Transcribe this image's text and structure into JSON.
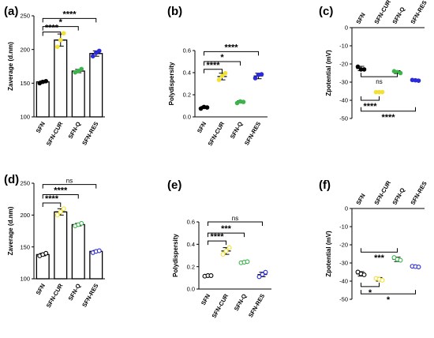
{
  "chart_data": [
    {
      "panel": "(a)",
      "type": "bar",
      "ylabel": "Zaverage (d.nm)",
      "categories": [
        "SFN",
        "SFN-CUR",
        "SFN-Q",
        "SFN-RES"
      ],
      "values": [
        152,
        214,
        168,
        194
      ],
      "errors": [
        1.5,
        9,
        2.5,
        4
      ],
      "points": [
        [
          150,
          152,
          153
        ],
        [
          204,
          214,
          224
        ],
        [
          166,
          168,
          171
        ],
        [
          190,
          195,
          198
        ]
      ],
      "ylim": [
        100,
        250
      ],
      "yticks": [
        "100",
        "150",
        "200",
        "250"
      ],
      "colors": [
        "#000000",
        "#f2e133",
        "#3cb44b",
        "#2b2bd9"
      ],
      "marker_fill": "filled",
      "brackets": [
        {
          "from": 0,
          "to": 1,
          "y": 226,
          "label": "****"
        },
        {
          "from": 0,
          "to": 2,
          "y": 234,
          "label": "*"
        },
        {
          "from": 0,
          "to": 3,
          "y": 246,
          "label": "****"
        }
      ]
    },
    {
      "panel": "(b)",
      "type": "scatter",
      "ylabel": "Polydispersity",
      "categories": [
        "SFN",
        "SFN-CUR",
        "SFN-Q",
        "SFN-RES"
      ],
      "values": [
        0.085,
        0.365,
        0.135,
        0.37
      ],
      "errors": [
        0.01,
        0.03,
        0.01,
        0.025
      ],
      "points": [
        [
          0.075,
          0.09,
          0.085
        ],
        [
          0.335,
          0.37,
          0.395
        ],
        [
          0.125,
          0.14,
          0.135
        ],
        [
          0.35,
          0.38,
          0.385
        ]
      ],
      "ylim": [
        0.0,
        0.6
      ],
      "yticks": [
        "0.0",
        "0.2",
        "0.4",
        "0.6"
      ],
      "colors": [
        "#000000",
        "#f2e133",
        "#3cb44b",
        "#2b2bd9"
      ],
      "marker_fill": "filled",
      "brackets": [
        {
          "from": 0,
          "to": 1,
          "y": 0.43,
          "label": "****"
        },
        {
          "from": 0,
          "to": 2,
          "y": 0.5,
          "label": "*"
        },
        {
          "from": 0,
          "to": 3,
          "y": 0.59,
          "label": "****"
        }
      ]
    },
    {
      "panel": "(c)",
      "type": "scatter",
      "ylabel": "Zpotential (mV)",
      "categories": [
        "SFN",
        "SFN-CUR",
        "SFN-Q",
        "SFN-RES"
      ],
      "values": [
        -22.5,
        -35.5,
        -24.5,
        -29
      ],
      "errors": [
        1.2,
        0.5,
        0.8,
        0.6
      ],
      "points": [
        [
          -21.5,
          -23,
          -23
        ],
        [
          -35.5,
          -35.5,
          -35.5
        ],
        [
          -24,
          -24.5,
          -25
        ],
        [
          -28.8,
          -29,
          -29.2
        ]
      ],
      "ylim": [
        -50,
        0
      ],
      "yticks": [
        "0",
        "-10",
        "-20",
        "-30",
        "-40",
        "-50"
      ],
      "colors": [
        "#000000",
        "#f2e133",
        "#3cb44b",
        "#2b2bd9"
      ],
      "marker_fill": "filled",
      "brackets": [
        {
          "from": 0,
          "to": 2,
          "y": -27,
          "label": "ns"
        },
        {
          "from": 0,
          "to": 1,
          "y": -40,
          "label": "****"
        },
        {
          "from": 0,
          "to": 3,
          "y": -46,
          "label": "****"
        }
      ]
    },
    {
      "panel": "(d)",
      "type": "bar",
      "ylabel": "Zaverage  (d.nm)",
      "categories": [
        "SFN",
        "SFN-CUR",
        "SFN-Q",
        "SFN-RES"
      ],
      "values": [
        138,
        205,
        185,
        143
      ],
      "errors": [
        2,
        5,
        2,
        1.5
      ],
      "points": [
        [
          136,
          138,
          140
        ],
        [
          200,
          205,
          210
        ],
        [
          183,
          185,
          187
        ],
        [
          141,
          143,
          144
        ]
      ],
      "ylim": [
        100,
        250
      ],
      "yticks": [
        "100",
        "150",
        "200",
        "250"
      ],
      "colors": [
        "#000000",
        "#f2e133",
        "#3cb44b",
        "#2b2bd9"
      ],
      "marker_fill": "open",
      "brackets": [
        {
          "from": 0,
          "to": 1,
          "y": 219,
          "label": "****"
        },
        {
          "from": 0,
          "to": 2,
          "y": 232,
          "label": "****"
        },
        {
          "from": 0,
          "to": 3,
          "y": 248,
          "label": "ns"
        }
      ]
    },
    {
      "panel": "(e)",
      "type": "scatter",
      "ylabel": "Polydispersity",
      "categories": [
        "SFN",
        "SFN-CUR",
        "SFN-Q",
        "SFN-RES"
      ],
      "values": [
        0.12,
        0.34,
        0.24,
        0.13
      ],
      "errors": [
        0.005,
        0.03,
        0.01,
        0.02
      ],
      "points": [
        [
          0.115,
          0.12,
          0.12
        ],
        [
          0.31,
          0.34,
          0.37
        ],
        [
          0.235,
          0.24,
          0.245
        ],
        [
          0.11,
          0.13,
          0.15
        ]
      ],
      "ylim": [
        0.0,
        0.6
      ],
      "yticks": [
        "0.0",
        "0.2",
        "0.4",
        "0.6"
      ],
      "colors": [
        "#000000",
        "#f2e133",
        "#3cb44b",
        "#2b2bd9"
      ],
      "marker_fill": "open",
      "brackets": [
        {
          "from": 0,
          "to": 1,
          "y": 0.43,
          "label": "****"
        },
        {
          "from": 0,
          "to": 2,
          "y": 0.5,
          "label": "***"
        },
        {
          "from": 0,
          "to": 3,
          "y": 0.6,
          "label": "ns"
        }
      ]
    },
    {
      "panel": "(f)",
      "type": "scatter",
      "ylabel": "Zpotential (mV)",
      "categories": [
        "SFN",
        "SFN-CUR",
        "SFN-Q",
        "SFN-RES"
      ],
      "values": [
        -36,
        -39,
        -28,
        -32
      ],
      "errors": [
        1.2,
        1,
        1.2,
        0.5
      ],
      "points": [
        [
          -35,
          -36,
          -36.5
        ],
        [
          -38.5,
          -39,
          -39.5
        ],
        [
          -27,
          -28,
          -28.5
        ],
        [
          -31.8,
          -32,
          -32.2
        ]
      ],
      "ylim": [
        -50,
        0
      ],
      "yticks": [
        "0",
        "-10",
        "-20",
        "-30",
        "-40",
        "-50"
      ],
      "colors": [
        "#000000",
        "#f2e133",
        "#3cb44b",
        "#2b2bd9"
      ],
      "marker_fill": "open",
      "brackets": [
        {
          "from": 0,
          "to": 2,
          "y": -24,
          "label": "***"
        },
        {
          "from": 0,
          "to": 1,
          "y": -43,
          "label": "*"
        },
        {
          "from": 0,
          "to": 3,
          "y": -47,
          "label": "*"
        }
      ]
    }
  ]
}
